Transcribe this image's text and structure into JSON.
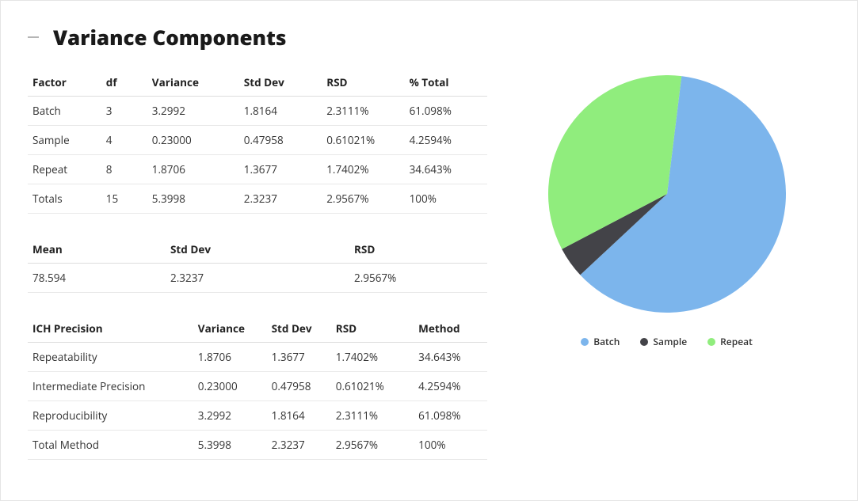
{
  "title": "Variance Components",
  "table1": {
    "headers": [
      "Factor",
      "df",
      "Variance",
      "Std Dev",
      "RSD",
      "% Total"
    ],
    "rows": [
      [
        "Batch",
        "3",
        "3.2992",
        "1.8164",
        "2.3111%",
        "61.098%"
      ],
      [
        "Sample",
        "4",
        "0.23000",
        "0.47958",
        "0.61021%",
        "4.2594%"
      ],
      [
        "Repeat",
        "8",
        "1.8706",
        "1.3677",
        "1.7402%",
        "34.643%"
      ],
      [
        "Totals",
        "15",
        "5.3998",
        "2.3237",
        "2.9567%",
        "100%"
      ]
    ],
    "col_widths": [
      "16%",
      "10%",
      "20%",
      "18%",
      "18%",
      "18%"
    ]
  },
  "table2": {
    "headers": [
      "Mean",
      "Std Dev",
      "RSD"
    ],
    "rows": [
      [
        "78.594",
        "2.3237",
        "2.9567%"
      ]
    ],
    "col_widths": [
      "30%",
      "40%",
      "30%"
    ]
  },
  "table3": {
    "headers": [
      "ICH Precision",
      "Variance",
      "Std Dev",
      "RSD",
      "Method"
    ],
    "rows": [
      [
        "Repeatability",
        "1.8706",
        "1.3677",
        "1.7402%",
        "34.643%"
      ],
      [
        "Intermediate Precision",
        "0.23000",
        "0.47958",
        "0.61021%",
        "4.2594%"
      ],
      [
        "Reproducibility",
        "3.2992",
        "1.8164",
        "2.3111%",
        "61.098%"
      ],
      [
        "Total Method",
        "5.3998",
        "2.3237",
        "2.9567%",
        "100%"
      ]
    ],
    "col_widths": [
      "36%",
      "16%",
      "14%",
      "18%",
      "16%"
    ]
  },
  "pie": {
    "type": "pie",
    "diameter": 300,
    "rotation_start_deg": -83,
    "slices": [
      {
        "label": "Batch",
        "value": 61.098,
        "color": "#7cb5ec"
      },
      {
        "label": "Sample",
        "value": 4.2594,
        "color": "#434348"
      },
      {
        "label": "Repeat",
        "value": 34.643,
        "color": "#90ed7d"
      }
    ],
    "background_color": "#ffffff",
    "legend_fontsize": 12,
    "legend_fontweight": 600
  }
}
